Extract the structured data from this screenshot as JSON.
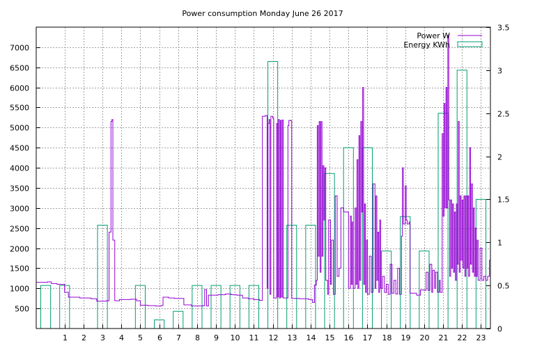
{
  "chart_data": {
    "type": "line",
    "title": "Power consumption Monday June 26 2017",
    "legend_position": "top-right",
    "grid": true,
    "xlim": [
      0,
      24
    ],
    "xticks": [
      "1",
      "2",
      "3",
      "4",
      "5",
      "6",
      "7",
      "8",
      "9",
      "10",
      "11",
      "12",
      "13",
      "14",
      "15",
      "16",
      "17",
      "18",
      "19",
      "20",
      "21",
      "22",
      "23"
    ],
    "y_left": {
      "ticks": [
        "500",
        "1000",
        "1500",
        "2000",
        "2500",
        "3000",
        "3500",
        "4000",
        "4500",
        "5000",
        "5500",
        "6000",
        "6500",
        "7000"
      ],
      "ylim": [
        0,
        7500
      ]
    },
    "y_right": {
      "ticks": [
        "0",
        "0.5",
        "1",
        "1.5",
        "2",
        "2.5",
        "3",
        "3.5"
      ],
      "ylim": [
        0,
        3.5
      ]
    },
    "colors": {
      "power": "#9400d3",
      "energy": "#009e73",
      "grid": "#a0a0a0"
    },
    "series": [
      {
        "name": "Power W",
        "axis": "left",
        "style": "step",
        "points": [
          [
            0,
            1150
          ],
          [
            0.6,
            1160
          ],
          [
            0.8,
            1120
          ],
          [
            1.1,
            1100
          ],
          [
            1.5,
            900
          ],
          [
            1.7,
            780
          ],
          [
            2.3,
            760
          ],
          [
            2.9,
            740
          ],
          [
            3.2,
            680
          ],
          [
            3.7,
            690
          ],
          [
            3.85,
            2400
          ],
          [
            3.95,
            5150
          ],
          [
            4.0,
            5200
          ],
          [
            4.05,
            2200
          ],
          [
            4.15,
            690
          ],
          [
            4.4,
            720
          ],
          [
            5.0,
            730
          ],
          [
            5.3,
            690
          ],
          [
            5.5,
            580
          ],
          [
            5.9,
            570
          ],
          [
            6.3,
            560
          ],
          [
            6.6,
            570
          ],
          [
            6.7,
            780
          ],
          [
            7.0,
            760
          ],
          [
            7.3,
            750
          ],
          [
            7.8,
            590
          ],
          [
            8.2,
            560
          ],
          [
            8.8,
            570
          ],
          [
            8.9,
            970
          ],
          [
            9.0,
            560
          ],
          [
            9.1,
            830
          ],
          [
            9.6,
            840
          ],
          [
            10.0,
            860
          ],
          [
            10.3,
            840
          ],
          [
            10.6,
            830
          ],
          [
            10.9,
            760
          ],
          [
            11.2,
            740
          ],
          [
            11.5,
            720
          ],
          [
            11.8,
            700
          ],
          [
            11.95,
            5280
          ],
          [
            12.1,
            5300
          ],
          [
            12.2,
            1000
          ],
          [
            12.25,
            5100
          ],
          [
            12.3,
            5200
          ],
          [
            12.35,
            850
          ],
          [
            12.4,
            5280
          ],
          [
            12.5,
            5230
          ],
          [
            12.55,
            760
          ],
          [
            12.7,
            5100
          ],
          [
            12.75,
            790
          ],
          [
            12.8,
            5200
          ],
          [
            12.85,
            760
          ],
          [
            12.9,
            5180
          ],
          [
            12.95,
            780
          ],
          [
            13.0,
            5190
          ],
          [
            13.05,
            760
          ],
          [
            13.2,
            760
          ],
          [
            13.3,
            5050
          ],
          [
            13.35,
            5180
          ],
          [
            13.45,
            5170
          ],
          [
            13.5,
            750
          ],
          [
            13.9,
            740
          ],
          [
            14.4,
            720
          ],
          [
            14.6,
            650
          ],
          [
            14.7,
            1080
          ],
          [
            14.8,
            1200
          ],
          [
            14.85,
            5050
          ],
          [
            14.9,
            1800
          ],
          [
            14.95,
            5150
          ],
          [
            15.0,
            1400
          ],
          [
            15.05,
            5150
          ],
          [
            15.1,
            1800
          ],
          [
            15.15,
            4050
          ],
          [
            15.2,
            2700
          ],
          [
            15.25,
            4000
          ],
          [
            15.3,
            1200
          ],
          [
            15.4,
            850
          ],
          [
            15.45,
            2700
          ],
          [
            15.55,
            1100
          ],
          [
            15.6,
            2200
          ],
          [
            15.7,
            850
          ],
          [
            15.8,
            3300
          ],
          [
            15.9,
            1300
          ],
          [
            16.0,
            1500
          ],
          [
            16.1,
            3000
          ],
          [
            16.25,
            2900
          ],
          [
            16.4,
            2900
          ],
          [
            16.5,
            1000
          ],
          [
            16.6,
            2800
          ],
          [
            16.65,
            1100
          ],
          [
            16.7,
            2650
          ],
          [
            16.75,
            1000
          ],
          [
            16.85,
            3000
          ],
          [
            16.9,
            1100
          ],
          [
            16.95,
            4200
          ],
          [
            17.0,
            1000
          ],
          [
            17.05,
            4800
          ],
          [
            17.1,
            1200
          ],
          [
            17.15,
            5150
          ],
          [
            17.2,
            2900
          ],
          [
            17.25,
            6000
          ],
          [
            17.3,
            1100
          ],
          [
            17.35,
            3100
          ],
          [
            17.4,
            900
          ],
          [
            17.45,
            2200
          ],
          [
            17.5,
            850
          ],
          [
            17.6,
            1800
          ],
          [
            17.7,
            900
          ],
          [
            17.8,
            3600
          ],
          [
            17.9,
            1000
          ],
          [
            17.95,
            3300
          ],
          [
            18.0,
            1200
          ],
          [
            18.05,
            2400
          ],
          [
            18.1,
            900
          ],
          [
            18.15,
            2700
          ],
          [
            18.2,
            1000
          ],
          [
            18.3,
            1300
          ],
          [
            18.4,
            900
          ],
          [
            18.5,
            1100
          ],
          [
            18.6,
            850
          ],
          [
            18.7,
            1600
          ],
          [
            18.8,
            880
          ],
          [
            18.9,
            1200
          ],
          [
            19.0,
            860
          ],
          [
            19.1,
            1500
          ],
          [
            19.2,
            850
          ],
          [
            19.3,
            2300
          ],
          [
            19.35,
            4000
          ],
          [
            19.4,
            2600
          ],
          [
            19.5,
            3550
          ],
          [
            19.55,
            2700
          ],
          [
            19.6,
            2600
          ],
          [
            19.7,
            2650
          ],
          [
            19.75,
            880
          ],
          [
            20.0,
            880
          ],
          [
            20.1,
            830
          ],
          [
            20.3,
            960
          ],
          [
            20.5,
            950
          ],
          [
            20.6,
            1400
          ],
          [
            20.7,
            950
          ],
          [
            20.8,
            1600
          ],
          [
            20.9,
            900
          ],
          [
            20.95,
            1450
          ],
          [
            21.05,
            1000
          ],
          [
            21.1,
            1400
          ],
          [
            21.2,
            900
          ],
          [
            21.3,
            1200
          ],
          [
            21.35,
            900
          ],
          [
            21.45,
            4850
          ],
          [
            21.5,
            2800
          ],
          [
            21.55,
            5600
          ],
          [
            21.6,
            3000
          ],
          [
            21.65,
            6000
          ],
          [
            21.7,
            3000
          ],
          [
            21.75,
            7300
          ],
          [
            21.8,
            3200
          ],
          [
            21.85,
            1300
          ],
          [
            21.9,
            3200
          ],
          [
            21.95,
            1500
          ],
          [
            22.0,
            3100
          ],
          [
            22.05,
            1400
          ],
          [
            22.1,
            2900
          ],
          [
            22.15,
            1200
          ],
          [
            22.2,
            3100
          ],
          [
            22.25,
            1600
          ],
          [
            22.3,
            5150
          ],
          [
            22.35,
            1400
          ],
          [
            22.4,
            3300
          ],
          [
            22.45,
            1700
          ],
          [
            22.5,
            3200
          ],
          [
            22.55,
            1500
          ],
          [
            22.6,
            3300
          ],
          [
            22.65,
            1300
          ],
          [
            22.7,
            3300
          ],
          [
            22.75,
            1500
          ],
          [
            22.8,
            3300
          ],
          [
            22.85,
            1300
          ],
          [
            22.9,
            4500
          ],
          [
            22.95,
            1600
          ],
          [
            23.0,
            3600
          ],
          [
            23.05,
            1400
          ],
          [
            23.1,
            3000
          ],
          [
            23.15,
            1300
          ],
          [
            23.2,
            2500
          ],
          [
            23.25,
            1300
          ],
          [
            23.3,
            2200
          ],
          [
            23.35,
            1200
          ],
          [
            23.45,
            2000
          ],
          [
            23.55,
            1200
          ],
          [
            23.65,
            1300
          ],
          [
            23.75,
            1200
          ],
          [
            23.85,
            1300
          ],
          [
            23.95,
            1700
          ],
          [
            24.0,
            1300
          ]
        ]
      },
      {
        "name": "Energy KWh",
        "axis": "right",
        "style": "boxes",
        "x": [
          0,
          1,
          2,
          3,
          4,
          5,
          6,
          7,
          8,
          9,
          10,
          11,
          12,
          13,
          14,
          15,
          16,
          17,
          18,
          19,
          20,
          21,
          22,
          23
        ],
        "values": [
          0.5,
          0.5,
          0,
          1.2,
          0,
          0.5,
          0.1,
          0.2,
          0.5,
          0.5,
          0.5,
          0.5,
          3.1,
          1.2,
          1.2,
          1.8,
          2.1,
          2.1,
          0.9,
          1.3,
          0.9,
          2.5,
          3.0,
          1.5
        ]
      }
    ]
  }
}
